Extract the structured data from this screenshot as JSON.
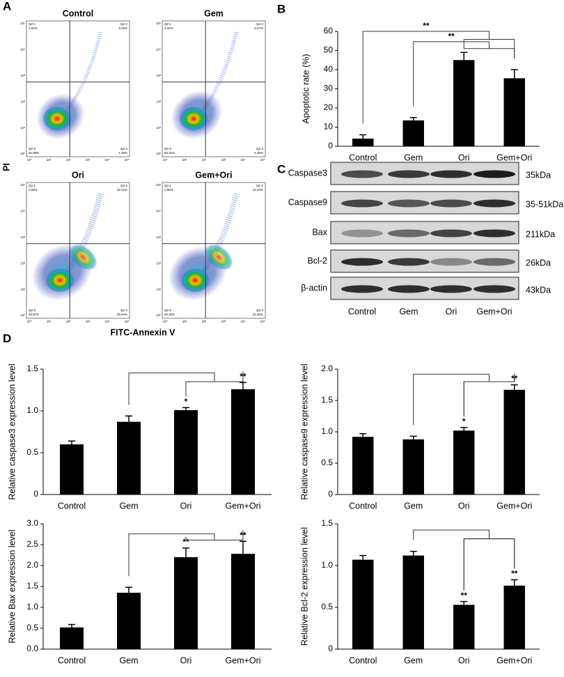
{
  "panel_labels": [
    "A",
    "B",
    "C",
    "D"
  ],
  "flow_cytometry": {
    "xlabel": "FITC-Annexin V",
    "ylabel": "PI",
    "axis_ticks": [
      "10⁰",
      "10¹",
      "10²",
      "10³",
      "10⁴",
      "10⁵"
    ],
    "plots": [
      {
        "title": "Control",
        "quadrants": [
          {
            "name": "Q2-1",
            "percent": "1.54%"
          },
          {
            "name": "Q2-2",
            "percent": "4.49%"
          },
          {
            "name": "Q2-3",
            "percent": "92.89%"
          },
          {
            "name": "Q2-4",
            "percent": "1.48%"
          }
        ]
      },
      {
        "title": "Gem",
        "quadrants": [
          {
            "name": "Q2-1",
            "percent": "4.34%"
          },
          {
            "name": "Q2-2",
            "percent": "6.07%"
          },
          {
            "name": "Q2-3",
            "percent": "83.31%"
          },
          {
            "name": "Q2-4",
            "percent": "6.38%"
          }
        ]
      },
      {
        "title": "Ori",
        "quadrants": [
          {
            "name": "Q2-1",
            "percent": "2.58%"
          },
          {
            "name": "Q2-2",
            "percent": "19.21%"
          },
          {
            "name": "Q2-3",
            "percent": "49.57%"
          },
          {
            "name": "Q2-4",
            "percent": "28.64%"
          }
        ]
      },
      {
        "title": "Gem+Ori",
        "quadrants": [
          {
            "name": "Q2-1",
            "percent": "2.86%"
          },
          {
            "name": "Q2-2",
            "percent": "14.53%"
          },
          {
            "name": "Q2-3",
            "percent": "60.25%"
          },
          {
            "name": "Q2-4",
            "percent": "22.36%"
          }
        ]
      }
    ]
  },
  "western_blot": {
    "rows": [
      {
        "protein": "Caspase3",
        "size": "35kDa"
      },
      {
        "protein": "Caspase9",
        "size": "35-51kDa"
      },
      {
        "protein": "Bax",
        "size": "211kDa"
      },
      {
        "protein": "Bcl-2",
        "size": "26kDa"
      },
      {
        "protein": "β-actin",
        "size": "43kDa"
      }
    ],
    "lanes": [
      "Control",
      "Gem",
      "Ori",
      "Gem+Ori"
    ]
  },
  "chart_data": [
    {
      "type": "bar",
      "ylabel": "Apoptotic rate (%)",
      "color": "#000000",
      "categories": [
        "Control",
        "Gem",
        "Ori",
        "Gem+Ori"
      ],
      "values": [
        4,
        13.5,
        45,
        35.5
      ],
      "errors": [
        2,
        1.5,
        4,
        4.5
      ],
      "ylim": [
        0,
        60
      ],
      "yticks": [
        0,
        10,
        20,
        30,
        40,
        50,
        60
      ],
      "annotations": [
        "**",
        "**"
      ]
    },
    {
      "type": "bar",
      "ylabel": "Relative caspase3 expression level",
      "color": "#000000",
      "categories": [
        "Control",
        "Gem",
        "Ori",
        "Gem+Ori"
      ],
      "values": [
        0.6,
        0.87,
        1.01,
        1.26
      ],
      "errors": [
        0.04,
        0.07,
        0.03,
        0.08
      ],
      "significance": [
        null,
        null,
        "*",
        "**"
      ],
      "ylim": [
        0,
        1.5
      ],
      "yticks": [
        0,
        0.5,
        {
          "value": 1,
          "label": "1.0"
        },
        1.5
      ]
    },
    {
      "type": "bar",
      "ylabel": "Relative caspase9 expression level",
      "color": "#000000",
      "categories": [
        "Control",
        "Gem",
        "Ori",
        "Gem+Ori"
      ],
      "values": [
        0.92,
        0.88,
        1.02,
        1.67
      ],
      "errors": [
        0.05,
        0.05,
        0.05,
        0.08
      ],
      "significance": [
        null,
        null,
        "*",
        "**"
      ],
      "ylim": [
        0,
        2
      ],
      "yticks": [
        0,
        0.5,
        {
          "value": 1,
          "label": "1.0"
        },
        1.5,
        {
          "value": 2,
          "label": "2.0"
        }
      ]
    },
    {
      "type": "bar",
      "ylabel": "Relative Bax expression level",
      "color": "#000000",
      "categories": [
        "Control",
        "Gem",
        "Ori",
        "Gem+Ori"
      ],
      "values": [
        0.52,
        1.35,
        2.2,
        2.28
      ],
      "errors": [
        0.07,
        0.13,
        0.22,
        0.3
      ],
      "significance": [
        null,
        null,
        "**",
        "**"
      ],
      "ylim": [
        0,
        3
      ],
      "yticks": [
        {
          "value": 0,
          "label": "0.0"
        },
        0.5,
        {
          "value": 1,
          "label": "1.0"
        },
        1.5,
        {
          "value": 2,
          "label": "2.0"
        },
        2.5,
        {
          "value": 3,
          "label": "3.0"
        }
      ]
    },
    {
      "type": "bar",
      "ylabel": "Relative Bcl-2 expression level",
      "color": "#000000",
      "categories": [
        "Control",
        "Gem",
        "Ori",
        "Gem+Ori"
      ],
      "values": [
        1.07,
        1.12,
        0.53,
        0.76
      ],
      "errors": [
        0.05,
        0.05,
        0.04,
        0.07
      ],
      "significance": [
        null,
        null,
        "**",
        "**"
      ],
      "ylim": [
        0,
        1.5
      ],
      "yticks": [
        0,
        0.5,
        {
          "value": 1,
          "label": "1.0"
        },
        1.5
      ]
    }
  ]
}
